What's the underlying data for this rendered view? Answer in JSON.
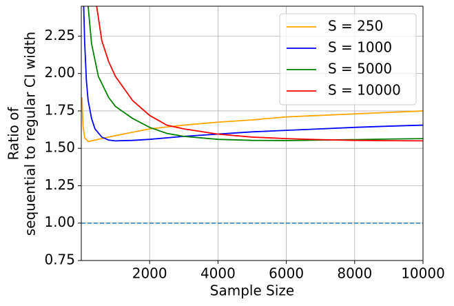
{
  "chart_data": {
    "type": "line",
    "xlabel": "Sample Size",
    "ylabel": [
      "Ratio of",
      "sequential to regular CI width"
    ],
    "xlim": [
      0,
      10000
    ],
    "xticks": [
      2000,
      4000,
      6000,
      8000,
      10000
    ],
    "ylim": [
      0.75,
      2.45
    ],
    "yticks": [
      0.75,
      {
        "value": 1,
        "label": "1.00"
      },
      1.25,
      {
        "value": 1.5,
        "label": "1.50"
      },
      1.75,
      {
        "value": 2,
        "label": "2.00"
      },
      2.25
    ],
    "grid": true,
    "legend": "upper right",
    "hlines": [
      {
        "value": 1,
        "color": "#1f77b4",
        "style": "dashed"
      }
    ],
    "series": [
      {
        "name": "S = 250",
        "color": "orange",
        "x": [
          20,
          50,
          100,
          200,
          400,
          1000,
          2000,
          3000,
          4000,
          5000,
          6000,
          7000,
          8000,
          9000,
          10000
        ],
        "values": [
          1.84,
          1.65,
          1.57,
          1.545,
          1.555,
          1.585,
          1.63,
          1.655,
          1.675,
          1.69,
          1.71,
          1.72,
          1.73,
          1.74,
          1.75
        ]
      },
      {
        "name": "S = 1000",
        "color": "#0000ff",
        "x": [
          70,
          100,
          150,
          200,
          300,
          400,
          600,
          800,
          1000,
          1500,
          2000,
          3000,
          4000,
          5000,
          6000,
          7000,
          8000,
          9000,
          10000
        ],
        "values": [
          2.45,
          2.2,
          1.95,
          1.82,
          1.7,
          1.63,
          1.575,
          1.555,
          1.55,
          1.553,
          1.56,
          1.58,
          1.595,
          1.61,
          1.62,
          1.63,
          1.64,
          1.648,
          1.655
        ]
      },
      {
        "name": "S = 5000",
        "color": "#008000",
        "x": [
          200,
          300,
          500,
          800,
          1000,
          1500,
          2000,
          2500,
          3000,
          4000,
          5000,
          6000,
          7000,
          8000,
          9000,
          10000
        ],
        "values": [
          2.45,
          2.2,
          1.98,
          1.84,
          1.78,
          1.7,
          1.64,
          1.6,
          1.58,
          1.56,
          1.553,
          1.552,
          1.555,
          1.558,
          1.562,
          1.565
        ]
      },
      {
        "name": "S = 10000",
        "color": "#ff0000",
        "x": [
          450,
          600,
          800,
          1000,
          1500,
          2000,
          2500,
          3000,
          4000,
          5000,
          6000,
          7000,
          8000,
          9000,
          10000
        ],
        "values": [
          2.45,
          2.22,
          2.08,
          1.98,
          1.82,
          1.72,
          1.655,
          1.63,
          1.595,
          1.575,
          1.565,
          1.558,
          1.553,
          1.551,
          1.55
        ]
      }
    ]
  }
}
